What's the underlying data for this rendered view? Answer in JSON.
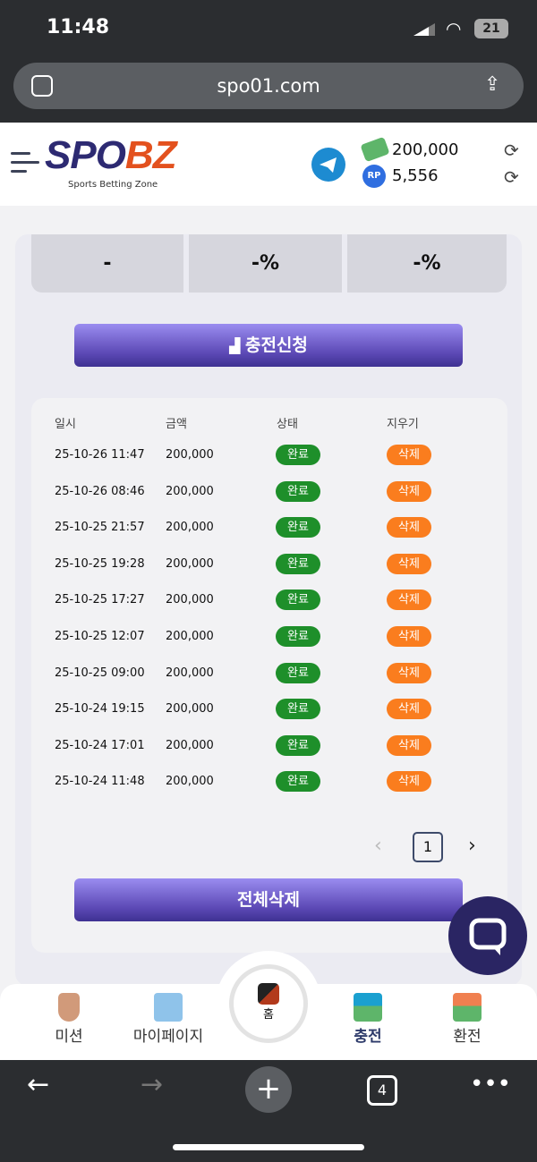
{
  "status_bar": {
    "time": "11:48",
    "battery": "21"
  },
  "browser": {
    "url": "spo01.com",
    "tab_count": "4"
  },
  "header": {
    "logo_part1": "SPO",
    "logo_part2": "BZ",
    "logo_tagline": "Sports Betting Zone",
    "balance": "200,000",
    "points": "5,556",
    "points_badge": "RP"
  },
  "stats": [
    "-",
    "-%",
    "-%"
  ],
  "charge_button": "충전신청",
  "table": {
    "headers": [
      "일시",
      "금액",
      "상태",
      "지우기"
    ],
    "rows": [
      {
        "date": "25-10-26 11:47",
        "amount": "200,000",
        "status": "완료",
        "action": "삭제"
      },
      {
        "date": "25-10-26 08:46",
        "amount": "200,000",
        "status": "완료",
        "action": "삭제"
      },
      {
        "date": "25-10-25 21:57",
        "amount": "200,000",
        "status": "완료",
        "action": "삭제"
      },
      {
        "date": "25-10-25 19:28",
        "amount": "200,000",
        "status": "완료",
        "action": "삭제"
      },
      {
        "date": "25-10-25 17:27",
        "amount": "200,000",
        "status": "완료",
        "action": "삭제"
      },
      {
        "date": "25-10-25 12:07",
        "amount": "200,000",
        "status": "완료",
        "action": "삭제"
      },
      {
        "date": "25-10-25 09:00",
        "amount": "200,000",
        "status": "완료",
        "action": "삭제"
      },
      {
        "date": "25-10-24 19:15",
        "amount": "200,000",
        "status": "완료",
        "action": "삭제"
      },
      {
        "date": "25-10-24 17:01",
        "amount": "200,000",
        "status": "완료",
        "action": "삭제"
      },
      {
        "date": "25-10-24 11:48",
        "amount": "200,000",
        "status": "완료",
        "action": "삭제"
      }
    ]
  },
  "pagination": {
    "current": "1"
  },
  "delete_all_button": "전체삭제",
  "bottom_nav": {
    "mission": "미션",
    "mypage": "마이페이지",
    "home": "홈",
    "charge": "충전",
    "exchange": "환전"
  },
  "colors": {
    "status_ok": "#1e8f2a",
    "delete": "#fa7d1e",
    "brand_navy": "#2d2a72",
    "brand_orange": "#e3511e"
  }
}
